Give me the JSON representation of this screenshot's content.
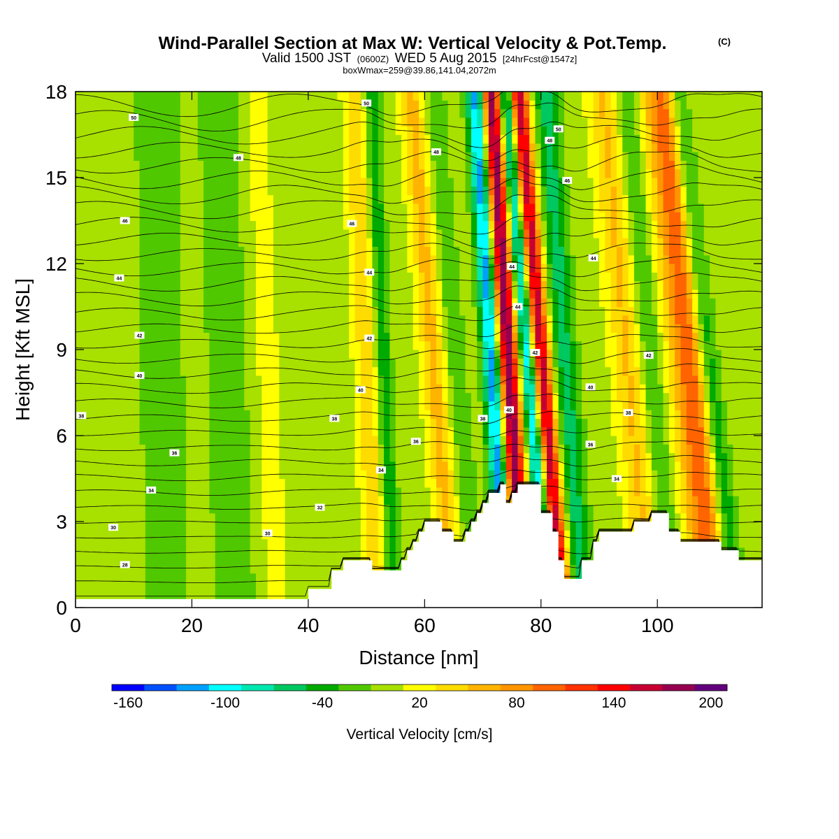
{
  "chart_data": {
    "type": "heatmap",
    "title": "Wind-Parallel Section at Max W: Vertical Velocity & Pot.Temp.",
    "title_mark": "(C)",
    "subtitle": {
      "valid": "Valid 1500 JST",
      "utc": "(0600Z)",
      "date": "WED 5 Aug 2015",
      "forecast": "[24hrFcst@1547z]"
    },
    "info_line": "boxWmax=259@39.86,141.04,2072m",
    "xlabel": "Distance [nm]",
    "ylabel": "Height [Kft MSL]",
    "xlim": [
      0,
      118
    ],
    "ylim": [
      0,
      18
    ],
    "x_ticks": [
      0,
      20,
      40,
      60,
      80,
      100
    ],
    "y_ticks": [
      0,
      3,
      6,
      9,
      12,
      15,
      18
    ],
    "colorbar": {
      "label": "Vertical Velocity [cm/s]",
      "range": [
        -160,
        220
      ],
      "step": 20,
      "tick_values": [
        -160,
        -100,
        -40,
        20,
        80,
        140,
        200
      ],
      "colors": [
        "#0000ff",
        "#0050ff",
        "#00a0ff",
        "#00ffff",
        "#00e8b0",
        "#00c860",
        "#00aa00",
        "#50c800",
        "#a8e000",
        "#ffff00",
        "#ffdc00",
        "#ffb400",
        "#ff9600",
        "#ff6400",
        "#ff3200",
        "#ff0000",
        "#c80032",
        "#960050",
        "#64007d"
      ]
    },
    "updraft_max": 259,
    "max_location": "39.86,141.04",
    "max_height_m": 2072,
    "potential_temperature_labels": [
      {
        "x": 10,
        "y": 17.1,
        "label": "50"
      },
      {
        "x": 28,
        "y": 15.7,
        "label": "48"
      },
      {
        "x": 8.5,
        "y": 13.5,
        "label": "46"
      },
      {
        "x": 7.5,
        "y": 11.5,
        "label": "44"
      },
      {
        "x": 11,
        "y": 9.5,
        "label": "42"
      },
      {
        "x": 11,
        "y": 8.1,
        "label": "40"
      },
      {
        "x": 1,
        "y": 6.7,
        "label": "38"
      },
      {
        "x": 17,
        "y": 5.4,
        "label": "36"
      },
      {
        "x": 13,
        "y": 4.1,
        "label": "34"
      },
      {
        "x": 6.5,
        "y": 2.8,
        "label": "30"
      },
      {
        "x": 8.5,
        "y": 1.5,
        "label": "28"
      },
      {
        "x": 50,
        "y": 17.6,
        "label": "50"
      },
      {
        "x": 62,
        "y": 15.9,
        "label": "48"
      },
      {
        "x": 47.5,
        "y": 13.4,
        "label": "46"
      },
      {
        "x": 50.5,
        "y": 11.7,
        "label": "44"
      },
      {
        "x": 50.5,
        "y": 9.4,
        "label": "42"
      },
      {
        "x": 49,
        "y": 7.6,
        "label": "40"
      },
      {
        "x": 44.5,
        "y": 6.6,
        "label": "38"
      },
      {
        "x": 58.5,
        "y": 5.8,
        "label": "36"
      },
      {
        "x": 52.5,
        "y": 4.8,
        "label": "34"
      },
      {
        "x": 42,
        "y": 3.5,
        "label": "32"
      },
      {
        "x": 33,
        "y": 2.6,
        "label": "30"
      },
      {
        "x": 70,
        "y": 6.6,
        "label": "38"
      },
      {
        "x": 74.5,
        "y": 6.9,
        "label": "40"
      },
      {
        "x": 75,
        "y": 11.9,
        "label": "44"
      },
      {
        "x": 76,
        "y": 10.5,
        "label": "44"
      },
      {
        "x": 79,
        "y": 8.9,
        "label": "42"
      },
      {
        "x": 83,
        "y": 16.7,
        "label": "50"
      },
      {
        "x": 81.5,
        "y": 16.3,
        "label": "48"
      },
      {
        "x": 84.5,
        "y": 14.9,
        "label": "46"
      },
      {
        "x": 89,
        "y": 12.2,
        "label": "44"
      },
      {
        "x": 98.5,
        "y": 8.8,
        "label": "42"
      },
      {
        "x": 88.5,
        "y": 7.7,
        "label": "40"
      },
      {
        "x": 95,
        "y": 6.8,
        "label": "38"
      },
      {
        "x": 88.5,
        "y": 5.7,
        "label": "36"
      },
      {
        "x": 93,
        "y": 4.5,
        "label": "34"
      }
    ],
    "terrain_profile": [
      [
        0,
        0.3
      ],
      [
        40,
        0.3
      ],
      [
        40,
        0.65
      ],
      [
        44,
        0.65
      ],
      [
        44,
        1.3
      ],
      [
        46,
        1.3
      ],
      [
        46,
        1.65
      ],
      [
        51,
        1.65
      ],
      [
        51,
        1.3
      ],
      [
        56,
        1.3
      ],
      [
        56,
        1.65
      ],
      [
        57,
        1.65
      ],
      [
        57,
        2.0
      ],
      [
        58,
        2.0
      ],
      [
        58,
        2.3
      ],
      [
        59,
        2.3
      ],
      [
        59,
        2.65
      ],
      [
        60,
        2.65
      ],
      [
        60,
        3.0
      ],
      [
        63,
        3.0
      ],
      [
        63,
        2.65
      ],
      [
        65,
        2.65
      ],
      [
        65,
        2.3
      ],
      [
        67,
        2.3
      ],
      [
        67,
        2.65
      ],
      [
        68,
        2.65
      ],
      [
        68,
        3.0
      ],
      [
        69,
        3.0
      ],
      [
        69,
        3.3
      ],
      [
        70,
        3.3
      ],
      [
        70,
        3.65
      ],
      [
        71,
        3.65
      ],
      [
        71,
        4.0
      ],
      [
        73,
        4.0
      ],
      [
        73,
        4.3
      ],
      [
        74,
        4.3
      ],
      [
        74,
        3.65
      ],
      [
        75,
        3.65
      ],
      [
        75,
        4.0
      ],
      [
        76,
        4.0
      ],
      [
        76,
        4.3
      ],
      [
        80,
        4.3
      ],
      [
        80,
        3.3
      ],
      [
        82,
        3.3
      ],
      [
        82,
        2.65
      ],
      [
        83,
        2.65
      ],
      [
        83,
        1.65
      ],
      [
        84,
        1.65
      ],
      [
        84,
        1.0
      ],
      [
        87,
        1.0
      ],
      [
        87,
        1.65
      ],
      [
        89,
        1.65
      ],
      [
        89,
        2.3
      ],
      [
        90,
        2.3
      ],
      [
        90,
        2.65
      ],
      [
        96,
        2.65
      ],
      [
        96,
        3.0
      ],
      [
        99,
        3.0
      ],
      [
        99,
        3.3
      ],
      [
        102,
        3.3
      ],
      [
        102,
        2.65
      ],
      [
        104,
        2.65
      ],
      [
        104,
        2.3
      ],
      [
        111,
        2.3
      ],
      [
        111,
        2.0
      ],
      [
        114,
        2.0
      ],
      [
        114,
        1.65
      ],
      [
        118,
        1.65
      ]
    ]
  }
}
